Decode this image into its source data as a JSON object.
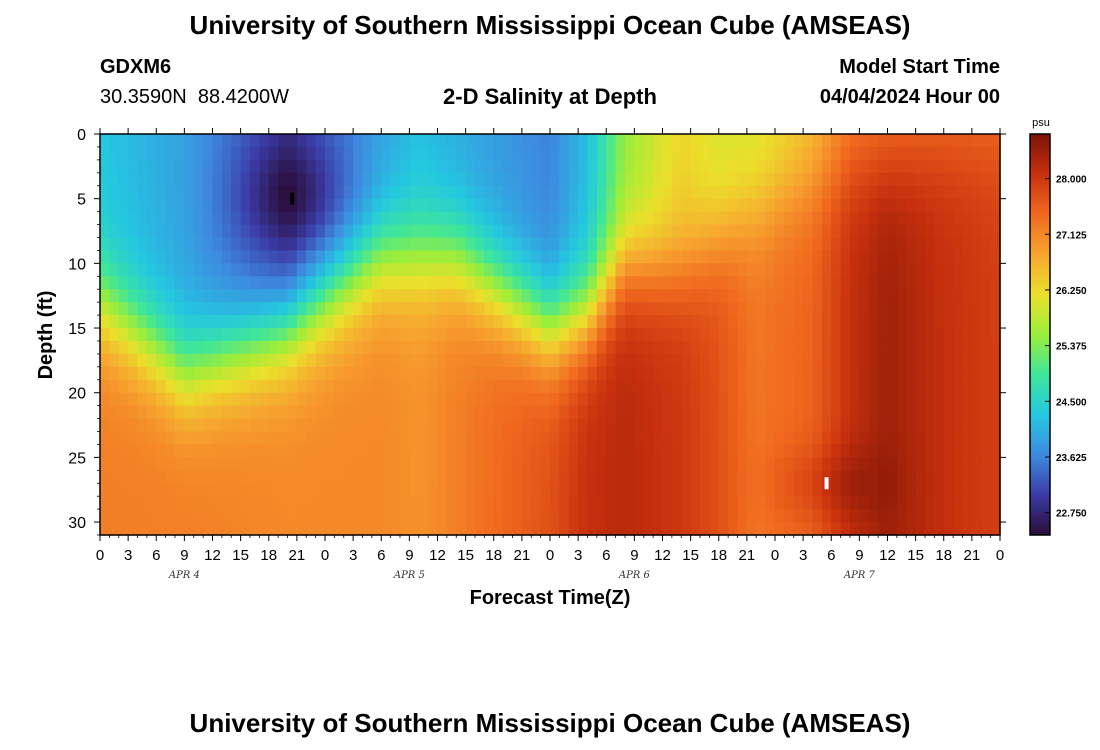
{
  "title": "University of Southern Mississippi Ocean Cube (AMSEAS)",
  "footer_title": "University of Southern Mississippi Ocean Cube (AMSEAS)",
  "station": {
    "id": "GDXM6",
    "lat": "30.3590N",
    "lon": "88.4200W"
  },
  "subtitle": "2-D Salinity at Depth",
  "model_start": {
    "label": "Model Start Time",
    "value": "04/04/2024 Hour 00"
  },
  "chart_data": {
    "type": "heatmap",
    "title": "2-D Salinity at Depth",
    "xlabel": "Forecast Time(Z)",
    "ylabel": "Depth (ft)",
    "x_ticks": [
      "0",
      "3",
      "6",
      "9",
      "12",
      "15",
      "18",
      "21",
      "0",
      "3",
      "6",
      "9",
      "12",
      "15",
      "18",
      "21",
      "0",
      "3",
      "6",
      "9",
      "12",
      "15",
      "18",
      "21",
      "0",
      "3",
      "6",
      "9",
      "12",
      "15",
      "18",
      "21",
      "0"
    ],
    "x_range_hours": [
      0,
      96
    ],
    "day_labels": [
      {
        "label": "APR 4",
        "hour": 9
      },
      {
        "label": "APR 5",
        "hour": 33
      },
      {
        "label": "APR 6",
        "hour": 57
      },
      {
        "label": "APR 7",
        "hour": 81
      }
    ],
    "y_ticks": [
      "0",
      "5",
      "10",
      "15",
      "20",
      "25",
      "30"
    ],
    "y_range_ft": [
      0,
      31
    ],
    "colorbar": {
      "unit": "psu",
      "ticks": [
        "28.000",
        "27.125",
        "26.250",
        "25.375",
        "24.500",
        "23.625",
        "22.750"
      ],
      "range": [
        22.4,
        28.7
      ],
      "colors": [
        "#2a0c36",
        "#3b3ba6",
        "#3e8ae0",
        "#24c8e0",
        "#3ee69b",
        "#9bee3a",
        "#ebe02b",
        "#f7a530",
        "#f0681e",
        "#c8310e",
        "#7a1305"
      ]
    },
    "markers": [
      {
        "kind": "min",
        "hour": 20.5,
        "depth_ft": 5
      },
      {
        "kind": "max",
        "hour": 77.5,
        "depth_ft": 27
      }
    ],
    "profile": {
      "hours": [
        0,
        9,
        20,
        30,
        34,
        38,
        48,
        52,
        56,
        62,
        66,
        70,
        76,
        80,
        84,
        90,
        96
      ],
      "halocline_ft": [
        13,
        18.5,
        15,
        9.5,
        9.5,
        9.5,
        15,
        14,
        10,
        10.5,
        8,
        6,
        4,
        3,
        2.5,
        2,
        2
      ],
      "surface_psu": [
        24.3,
        23.9,
        22.9,
        23.9,
        24.2,
        24.0,
        23.6,
        24.2,
        25.5,
        26.3,
        26.0,
        26.0,
        26.5,
        27.2,
        27.3,
        27.4,
        27.4
      ],
      "bottom_psu": [
        27.2,
        27.2,
        27.1,
        27.1,
        27.0,
        27.2,
        27.7,
        28.1,
        28.2,
        28.0,
        27.7,
        27.3,
        27.5,
        28.1,
        28.4,
        28.1,
        27.9
      ]
    }
  }
}
